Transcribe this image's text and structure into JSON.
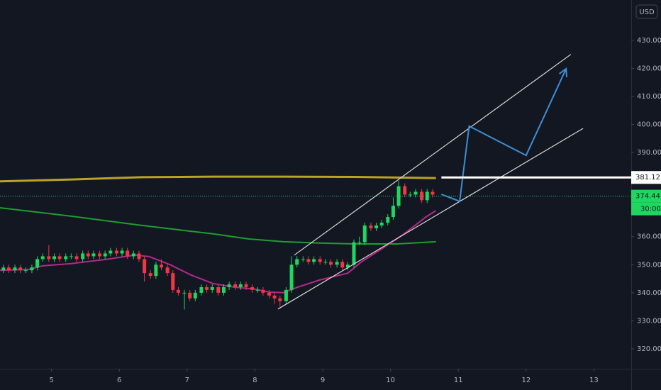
{
  "chart_data": {
    "type": "candlestick",
    "currency": "USD",
    "countdown": "30:00",
    "last_price": 374.44,
    "price_level": 381.12,
    "price_level_start": 10.75,
    "up_color": "#1ed760",
    "down_color": "#f23645",
    "xlim": [
      4.24,
      13.55
    ],
    "ylim": [
      312.9,
      444.4
    ],
    "xticks": [
      5,
      6,
      7,
      8,
      9,
      10,
      11,
      12,
      13
    ],
    "yticks": [
      {
        "value": 320,
        "label": "320.00"
      },
      {
        "value": 330,
        "label": "330.00"
      },
      {
        "value": 340,
        "label": "340.00"
      },
      {
        "value": 350,
        "label": "350.00"
      },
      {
        "value": 360,
        "label": "360.00"
      },
      {
        "value": 370,
        "label": "370.00"
      },
      {
        "value": 380,
        "label": "380.00"
      },
      {
        "value": 390,
        "label": "390.00"
      },
      {
        "value": 400,
        "label": "400.00"
      },
      {
        "value": 410,
        "label": "410.00"
      },
      {
        "value": 420,
        "label": "420.00"
      },
      {
        "value": 430,
        "label": "430.00"
      }
    ],
    "x": [
      4.29,
      4.37,
      4.46,
      4.54,
      4.62,
      4.71,
      4.79,
      4.87,
      4.96,
      5.04,
      5.12,
      5.21,
      5.29,
      5.37,
      5.46,
      5.54,
      5.62,
      5.71,
      5.79,
      5.87,
      5.96,
      6.04,
      6.12,
      6.21,
      6.29,
      6.37,
      6.46,
      6.54,
      6.62,
      6.71,
      6.79,
      6.87,
      6.96,
      7.04,
      7.12,
      7.21,
      7.29,
      7.37,
      7.46,
      7.54,
      7.62,
      7.71,
      7.79,
      7.87,
      7.96,
      8.04,
      8.12,
      8.21,
      8.29,
      8.37,
      8.46,
      8.54,
      8.62,
      8.71,
      8.79,
      8.87,
      8.96,
      9.04,
      9.12,
      9.21,
      9.29,
      9.37,
      9.46,
      9.54,
      9.62,
      9.71,
      9.79,
      9.87,
      9.96,
      10.04,
      10.12,
      10.21,
      10.29,
      10.37,
      10.46,
      10.54,
      10.62
    ],
    "open": [
      348,
      349,
      348,
      349,
      348,
      348,
      349,
      352,
      353,
      352,
      353,
      352,
      353,
      353,
      352,
      354,
      353,
      354,
      353,
      354,
      355,
      354,
      355,
      353,
      354,
      352,
      347,
      346,
      350,
      349,
      347,
      341,
      340,
      340,
      338,
      340,
      342,
      341,
      342,
      340,
      342,
      343,
      342,
      343,
      342,
      341,
      341,
      340,
      339,
      338,
      337,
      341,
      350,
      352,
      352,
      351,
      352,
      351,
      351,
      350,
      351,
      349,
      350,
      358,
      358,
      364,
      363,
      364,
      365,
      367,
      371,
      378,
      375,
      375,
      376,
      373,
      376
    ],
    "high": [
      350,
      350,
      350,
      350,
      349,
      350,
      353,
      354,
      357,
      354,
      354,
      354,
      354,
      354,
      355,
      355,
      355,
      355,
      355,
      356,
      356,
      356,
      356,
      355,
      355,
      353,
      348,
      351,
      352,
      350,
      348,
      342,
      341,
      341,
      341,
      343,
      343,
      343,
      343,
      343,
      344,
      344,
      344,
      344,
      343,
      342,
      342,
      341,
      340,
      339,
      342,
      353,
      353,
      353,
      353,
      353,
      353,
      352,
      352,
      352,
      352,
      351,
      359,
      360,
      365,
      365,
      365,
      366,
      368,
      374,
      380,
      379,
      376,
      377,
      377,
      377,
      377
    ],
    "low": [
      347,
      347,
      347,
      347,
      347,
      347,
      348,
      351,
      351,
      351,
      351,
      351,
      352,
      351,
      351,
      352,
      352,
      352,
      352,
      353,
      353,
      353,
      352,
      352,
      351,
      344,
      345,
      345,
      348,
      346,
      340,
      339,
      334,
      337,
      337,
      339,
      340,
      340,
      339,
      339,
      341,
      341,
      341,
      341,
      340,
      340,
      339,
      338,
      336,
      335,
      336,
      340,
      349,
      351,
      350,
      350,
      350,
      350,
      349,
      349,
      348,
      348,
      349,
      357,
      357,
      362,
      362,
      363,
      364,
      366,
      370,
      374,
      374,
      374,
      372,
      372,
      374
    ],
    "close": [
      349,
      348,
      349,
      348,
      348,
      349,
      352,
      353,
      352,
      353,
      352,
      353,
      353,
      352,
      354,
      353,
      354,
      353,
      354,
      355,
      354,
      355,
      353,
      354,
      352,
      347,
      346,
      350,
      349,
      347,
      341,
      340,
      340,
      338,
      340,
      342,
      341,
      342,
      340,
      342,
      343,
      342,
      343,
      342,
      341,
      341,
      340,
      339,
      338,
      337,
      341,
      350,
      352,
      352,
      351,
      352,
      351,
      351,
      350,
      351,
      349,
      350,
      358,
      358,
      364,
      363,
      364,
      365,
      367,
      371,
      378,
      375,
      375,
      376,
      373,
      376,
      375
    ],
    "series": [
      {
        "color": "#b8a425",
        "x": [
          4.24,
          5.29,
          6.33,
          7.38,
          8.42,
          9.47,
          10.67
        ],
        "values": [
          379.7,
          380.4,
          381.2,
          381.4,
          381.4,
          381.3,
          380.9
        ]
      },
      {
        "color": "#1e9e2e",
        "x": [
          4.24,
          5.29,
          6.33,
          7.38,
          7.9,
          8.42,
          8.95,
          9.47,
          10.1,
          10.67
        ],
        "values": [
          370.3,
          367.3,
          364,
          361,
          359.2,
          358.2,
          357.7,
          357.4,
          357.4,
          358.2
        ]
      },
      {
        "color": "#b3298a",
        "x": [
          4.24,
          4.66,
          4.87,
          5.29,
          5.81,
          6.23,
          6.44,
          6.75,
          7.06,
          7.38,
          7.69,
          8.0,
          8.21,
          8.42,
          8.63,
          8.95,
          9.37,
          9.57,
          9.89,
          10.2,
          10.52,
          10.67
        ],
        "values": [
          348,
          348.3,
          349.6,
          350.4,
          351.9,
          353.4,
          352.9,
          350,
          346.3,
          343.3,
          342,
          341.3,
          340.2,
          340,
          342,
          344.5,
          347,
          351,
          356,
          361,
          367,
          369.3
        ]
      }
    ],
    "drawings": [
      {
        "color": "#d9d9d9",
        "x": [
          8.58,
          12.66
        ],
        "values": [
          353.4,
          425
        ]
      },
      {
        "color": "#d9d9d9",
        "x": [
          8.34,
          12.84
        ],
        "values": [
          334.2,
          398.6
        ]
      },
      {
        "color": "#3d8fd6",
        "x": [
          10.75,
          11.02,
          11.16,
          12.0,
          12.59
        ],
        "values": [
          375.1,
          372.6,
          399.4,
          389,
          419.9
        ]
      }
    ]
  }
}
